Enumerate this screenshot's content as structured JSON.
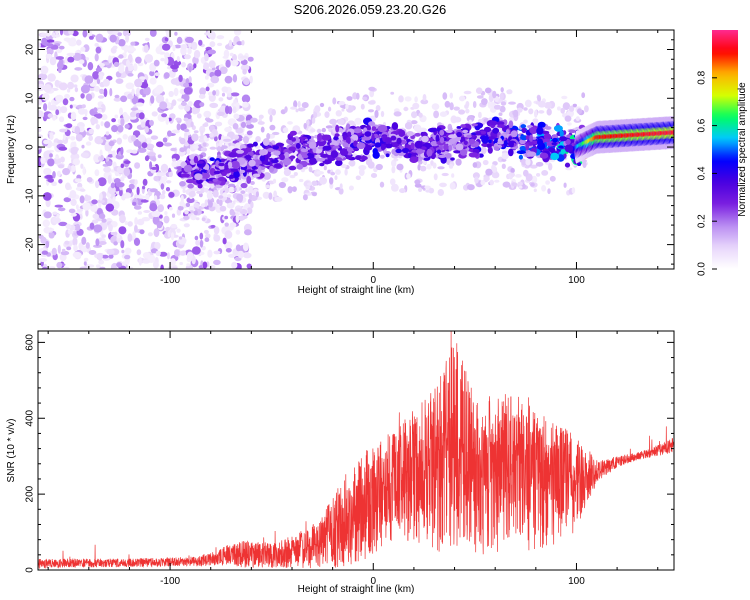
{
  "title": "S206.2026.059.23.20.G26",
  "chart_data": [
    {
      "type": "heatmap",
      "name": "spectrogram",
      "xlabel": "Height of straight line (km)",
      "ylabel": "Frequency (Hz)",
      "xlim": [
        -165,
        148
      ],
      "ylim": [
        -25,
        24
      ],
      "x_ticks": [
        -100,
        0,
        100
      ],
      "x_tick_labels": [
        "-100",
        "0",
        "100"
      ],
      "y_ticks": [
        -20,
        -10,
        0,
        10,
        20
      ],
      "y_tick_labels": [
        "-20",
        "-10",
        "0",
        "10",
        "20"
      ],
      "colorbar": {
        "label": "Normalized spectral amplitude",
        "range": [
          0,
          1
        ],
        "ticks": [
          0.0,
          0.2,
          0.4,
          0.6,
          0.8
        ],
        "tick_labels": [
          "0.0",
          "0.2",
          "0.4",
          "0.6",
          "0.8"
        ],
        "colormap": [
          "#ffffff",
          "#e8d6fb",
          "#b98cf2",
          "#7a1fe0",
          "#4a00e0",
          "#0000ff",
          "#00c8ff",
          "#00ff60",
          "#d8ff00",
          "#ffb000",
          "#ff0000",
          "#ff2a90"
        ]
      },
      "noise_region_x": [
        -165,
        -60
      ],
      "signal_track": {
        "x": [
          -95,
          -80,
          -60,
          -40,
          -20,
          0,
          20,
          40,
          60,
          80,
          100,
          110,
          148
        ],
        "y": [
          -5,
          -5,
          -3,
          -1,
          0,
          2,
          0,
          1,
          2,
          1,
          0,
          2,
          3
        ]
      },
      "track_amplitude": {
        "x": [
          -95,
          -80,
          -60,
          -40,
          -20,
          0,
          20,
          40,
          60,
          80,
          100,
          110,
          148
        ],
        "value": [
          0.25,
          0.35,
          0.3,
          0.3,
          0.3,
          0.35,
          0.3,
          0.3,
          0.35,
          0.4,
          0.5,
          0.9,
          0.95
        ]
      }
    },
    {
      "type": "line",
      "name": "snr",
      "xlabel": "Height of straight line (km)",
      "ylabel": "SNR (10 * v/v)",
      "xlim": [
        -165,
        148
      ],
      "ylim": [
        0,
        630
      ],
      "x_ticks": [
        -100,
        0,
        100
      ],
      "x_tick_labels": [
        "-100",
        "0",
        "100"
      ],
      "y_ticks": [
        0,
        200,
        400,
        600
      ],
      "y_tick_labels": [
        "0",
        "200",
        "400",
        "600"
      ],
      "color": "#ee3333",
      "series": [
        {
          "name": "SNR",
          "envelope_x": [
            -165,
            -120,
            -90,
            -80,
            -70,
            -60,
            -50,
            -40,
            -30,
            -20,
            -10,
            0,
            10,
            20,
            30,
            40,
            50,
            60,
            70,
            80,
            90,
            100,
            110,
            120,
            130,
            140,
            148
          ],
          "envelope_upper": [
            30,
            30,
            35,
            45,
            70,
            80,
            70,
            90,
            120,
            190,
            290,
            330,
            370,
            420,
            480,
            620,
            450,
            450,
            480,
            420,
            390,
            360,
            290,
            300,
            310,
            330,
            350
          ],
          "envelope_lower": [
            5,
            8,
            10,
            10,
            10,
            5,
            5,
            5,
            5,
            5,
            10,
            30,
            80,
            60,
            40,
            50,
            30,
            40,
            50,
            40,
            60,
            100,
            230,
            270,
            290,
            300,
            310
          ]
        }
      ]
    }
  ]
}
